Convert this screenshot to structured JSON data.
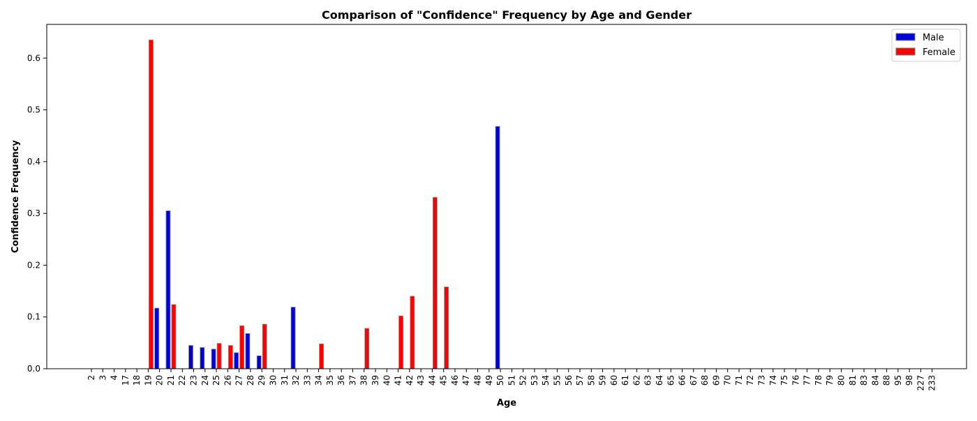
{
  "chart_data": {
    "type": "bar",
    "title": "Comparison of \"Confidence\" Frequency by Age and Gender",
    "xlabel": "Age",
    "ylabel": "Confidence Frequency",
    "ylim": [
      0,
      0.665
    ],
    "yticks": [
      "0.0",
      "0.1",
      "0.2",
      "0.3",
      "0.4",
      "0.5",
      "0.6"
    ],
    "grid": false,
    "legend_position": "top-right",
    "categories": [
      "2",
      "3",
      "4",
      "17",
      "18",
      "19",
      "20",
      "21",
      "22",
      "23",
      "24",
      "25",
      "26",
      "27",
      "28",
      "29",
      "30",
      "31",
      "32",
      "33",
      "34",
      "35",
      "36",
      "37",
      "38",
      "39",
      "40",
      "41",
      "42",
      "43",
      "44",
      "45",
      "46",
      "47",
      "48",
      "49",
      "50",
      "51",
      "52",
      "53",
      "54",
      "55",
      "56",
      "57",
      "58",
      "59",
      "60",
      "61",
      "62",
      "63",
      "64",
      "65",
      "66",
      "67",
      "68",
      "69",
      "70",
      "71",
      "72",
      "73",
      "74",
      "75",
      "76",
      "77",
      "78",
      "79",
      "80",
      "81",
      "83",
      "84",
      "88",
      "95",
      "98",
      "227",
      "233"
    ],
    "series": [
      {
        "name": "Male",
        "color": "#0000dd",
        "values": [
          0,
          0,
          0,
          0,
          0,
          0,
          0.117,
          0.305,
          0,
          0.045,
          0.041,
          0.038,
          0,
          0.031,
          0.068,
          0.025,
          0,
          0,
          0.119,
          0,
          0,
          0,
          0,
          0,
          0,
          0,
          0,
          0,
          0,
          0,
          0,
          0,
          0,
          0,
          0,
          0,
          0.468,
          0,
          0,
          0,
          0,
          0,
          0,
          0,
          0,
          0,
          0,
          0,
          0,
          0,
          0,
          0,
          0,
          0,
          0,
          0,
          0,
          0,
          0,
          0,
          0,
          0,
          0,
          0,
          0,
          0,
          0,
          0,
          0,
          0,
          0,
          0,
          0,
          0,
          0
        ]
      },
      {
        "name": "Female",
        "color": "#ff0000",
        "values": [
          0,
          0,
          0,
          0,
          0,
          0.635,
          0,
          0.124,
          0,
          0,
          0,
          0.049,
          0.045,
          0.083,
          0,
          0.086,
          0,
          0,
          0,
          0,
          0.048,
          0,
          0,
          0,
          0.078,
          0,
          0,
          0.102,
          0.14,
          0,
          0.331,
          0.158,
          0,
          0,
          0,
          0,
          0,
          0,
          0,
          0,
          0,
          0,
          0,
          0,
          0,
          0,
          0,
          0,
          0,
          0,
          0,
          0,
          0,
          0,
          0,
          0,
          0,
          0,
          0,
          0,
          0,
          0,
          0,
          0,
          0,
          0,
          0,
          0,
          0,
          0,
          0,
          0,
          0,
          0,
          0
        ]
      }
    ]
  }
}
